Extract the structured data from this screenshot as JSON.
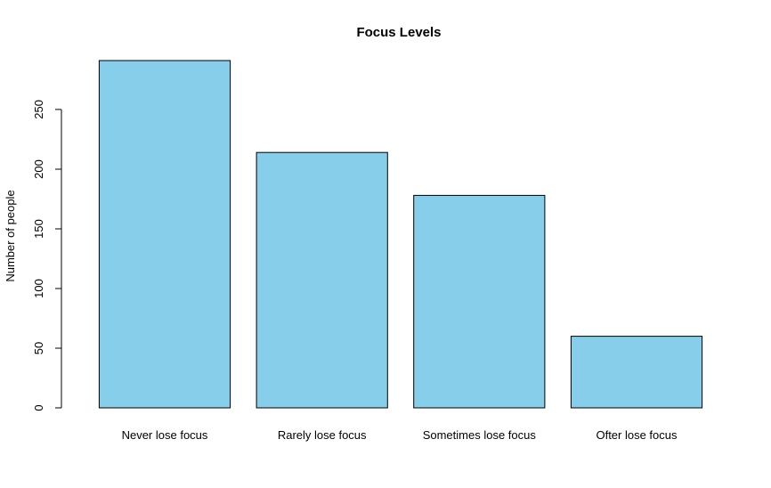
{
  "chart_data": {
    "type": "bar",
    "title": "Focus Levels",
    "xlabel": "",
    "ylabel": "Number of people",
    "categories": [
      "Never lose focus",
      "Rarely lose focus",
      "Sometimes lose focus",
      "Ofter lose focus"
    ],
    "values": [
      291,
      214,
      178,
      60
    ],
    "ylim": [
      0,
      291
    ],
    "yticks": [
      0,
      50,
      100,
      150,
      200,
      250
    ],
    "bar_color": "#87CEEB",
    "border_color": "#000000",
    "grid": false,
    "legend": "none"
  }
}
